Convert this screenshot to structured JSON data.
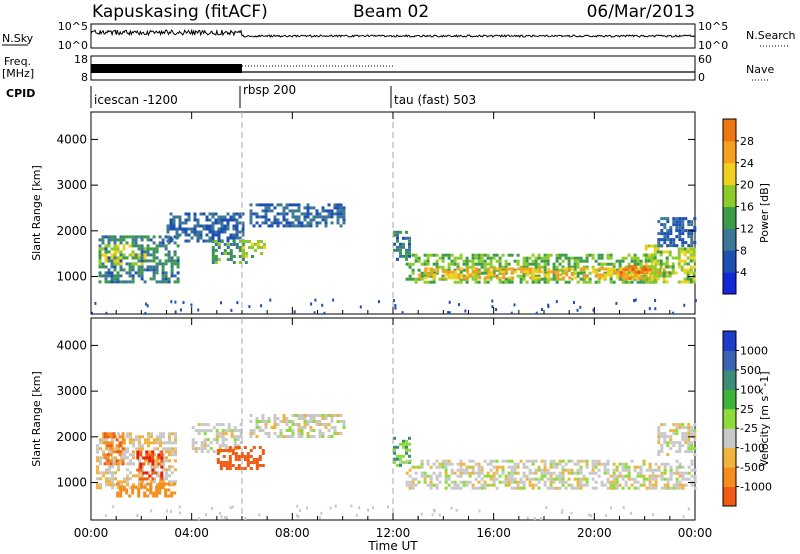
{
  "header": {
    "station": "Kapuskasing (fitACF)",
    "beam": "Beam 02",
    "date": "06/Mar/2013"
  },
  "strip_labels": {
    "nsky": "N.Sky",
    "nsky_ticks": [
      "10^5",
      "10^0"
    ],
    "nsearch": "N.Search",
    "nsearch_ticks": [
      "10^5",
      "10^0"
    ],
    "freq": "Freq.",
    "freq_unit": "[MHz]",
    "freq_ticks": [
      "18",
      "8"
    ],
    "nave": "Nave",
    "nave_ticks": [
      "60",
      "0"
    ],
    "cpid": "CPID"
  },
  "cpid_segments": [
    {
      "label": "icescan -1200",
      "start_hour": 0
    },
    {
      "label": "rbsp 200",
      "start_hour": 6
    },
    {
      "label": "tau (fast) 503",
      "start_hour": 12
    }
  ],
  "x_axis": {
    "label": "Time UT",
    "ticks": [
      "00:00",
      "04:00",
      "08:00",
      "12:00",
      "16:00",
      "20:00",
      "00:00"
    ],
    "range_hours": [
      0,
      24
    ]
  },
  "y_axis": {
    "label": "Slant Range [km]",
    "ticks": [
      "1000",
      "2000",
      "3000",
      "4000"
    ],
    "range_km": [
      180,
      4600
    ]
  },
  "power_colorbar": {
    "label": "Power [dB]",
    "ticks": [
      "4",
      "8",
      "12",
      "16",
      "20",
      "24",
      "28"
    ],
    "colors": [
      "#1428d8",
      "#1e50b4",
      "#3c7896",
      "#3c9b46",
      "#8ccb28",
      "#f0d21e",
      "#f5a01e",
      "#f07814",
      "#f05014",
      "#e61e0a"
    ]
  },
  "velocity_colorbar": {
    "label": "Velocity [m s^-1]",
    "ticks": [
      "1000",
      "500",
      "100",
      "25",
      "-25",
      "-100",
      "-500",
      "-1000"
    ],
    "colors": [
      "#1e3cc8",
      "#3c64b4",
      "#3c8c78",
      "#3cb43c",
      "#8cdc3c",
      "#c8c8c8",
      "#f0b43c",
      "#f58c1e",
      "#f05a14",
      "#e61e0a"
    ]
  },
  "chart_data": {
    "type": "heatmap",
    "panels": [
      {
        "name": "power",
        "patches": [
          {
            "t0": 0.3,
            "t1": 3.4,
            "r0": 900,
            "r1": 1900,
            "value": 8
          },
          {
            "t0": 0.3,
            "t1": 2.2,
            "r0": 1300,
            "r1": 1700,
            "value": 14
          },
          {
            "t0": 3.0,
            "t1": 6.0,
            "r0": 1800,
            "r1": 2400,
            "value": 6
          },
          {
            "t0": 4.8,
            "t1": 6.2,
            "r0": 1300,
            "r1": 1800,
            "value": 10
          },
          {
            "t0": 6.0,
            "t1": 6.9,
            "r0": 1400,
            "r1": 1800,
            "value": 14
          },
          {
            "t0": 6.3,
            "t1": 10.0,
            "r0": 2100,
            "r1": 2600,
            "value": 6
          },
          {
            "t0": 12.0,
            "t1": 12.6,
            "r0": 1400,
            "r1": 2000,
            "value": 8
          },
          {
            "t0": 12.5,
            "t1": 22.5,
            "r0": 900,
            "r1": 1500,
            "value": 12
          },
          {
            "t0": 13.0,
            "t1": 22.5,
            "r0": 1000,
            "r1": 1200,
            "value": 18
          },
          {
            "t0": 21.0,
            "t1": 23.0,
            "r0": 950,
            "r1": 1250,
            "value": 22
          },
          {
            "t0": 22.0,
            "t1": 24.0,
            "r0": 900,
            "r1": 1700,
            "value": 14
          },
          {
            "t0": 22.5,
            "t1": 24.0,
            "r0": 1700,
            "r1": 2300,
            "value": 6
          }
        ]
      },
      {
        "name": "velocity",
        "patches": [
          {
            "t0": 0.2,
            "t1": 3.4,
            "r0": 900,
            "r1": 2100,
            "value": -25
          },
          {
            "t0": 0.5,
            "t1": 1.3,
            "r0": 1400,
            "r1": 2100,
            "value": -300
          },
          {
            "t0": 1.8,
            "t1": 2.8,
            "r0": 1100,
            "r1": 1700,
            "value": -700
          },
          {
            "t0": 1.0,
            "t1": 3.3,
            "r0": 700,
            "r1": 1000,
            "value": -200
          },
          {
            "t0": 4.0,
            "t1": 6.0,
            "r0": 1700,
            "r1": 2300,
            "value": 0
          },
          {
            "t0": 5.0,
            "t1": 6.9,
            "r0": 1300,
            "r1": 1800,
            "value": -500
          },
          {
            "t0": 6.3,
            "t1": 10.0,
            "r0": 2000,
            "r1": 2500,
            "value": 0
          },
          {
            "t0": 12.0,
            "t1": 12.6,
            "r0": 1400,
            "r1": 2000,
            "value": 60
          },
          {
            "t0": 12.5,
            "t1": 24.0,
            "r0": 900,
            "r1": 1500,
            "value": 0
          },
          {
            "t0": 22.5,
            "t1": 24.0,
            "r0": 1600,
            "r1": 2300,
            "value": 0
          }
        ]
      }
    ]
  }
}
